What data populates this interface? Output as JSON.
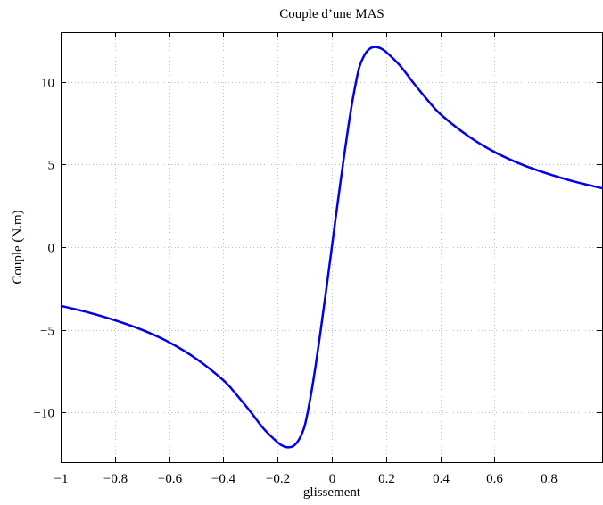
{
  "chart_data": {
    "type": "line",
    "title": "Couple d’une MAS",
    "xlabel": "glissement",
    "ylabel": "Couple (N.m)",
    "xlim": [
      -1,
      1
    ],
    "ylim": [
      -13,
      13
    ],
    "grid": true,
    "x_ticks": [
      -1,
      -0.8,
      -0.6,
      -0.4,
      -0.2,
      0,
      0.2,
      0.4,
      0.6,
      0.8
    ],
    "x_tick_labels": [
      "−1",
      "−0.8",
      "−0.6",
      "−0.4",
      "−0.2",
      "0",
      "0.2",
      "0.4",
      "0.6",
      "0.8"
    ],
    "y_ticks": [
      -10,
      -5,
      0,
      5,
      10
    ],
    "y_tick_labels": [
      "−10",
      "−5",
      "0",
      "5",
      "10"
    ],
    "colors": {
      "series": "#0000ee"
    },
    "series": [
      {
        "x": [
          -1,
          -0.9,
          -0.8,
          -0.7,
          -0.6,
          -0.5,
          -0.4,
          -0.35,
          -0.3,
          -0.25,
          -0.2,
          -0.18,
          -0.16,
          -0.14,
          -0.12,
          -0.1,
          -0.08,
          -0.06,
          -0.04,
          -0.02,
          0,
          0.02,
          0.04,
          0.06,
          0.08,
          0.1,
          0.12,
          0.14,
          0.16,
          0.18,
          0.2,
          0.25,
          0.3,
          0.35,
          0.4,
          0.5,
          0.6,
          0.7,
          0.8,
          0.9,
          1
        ],
        "values": [
          -3.55,
          -3.94,
          -4.42,
          -5.0,
          -5.75,
          -6.75,
          -8.05,
          -8.95,
          -9.95,
          -11.0,
          -11.8,
          -12.02,
          -12.1,
          -12.0,
          -11.6,
          -10.8,
          -9.2,
          -7.2,
          -4.9,
          -2.5,
          0,
          2.5,
          4.9,
          7.2,
          9.2,
          10.8,
          11.6,
          12.0,
          12.1,
          12.02,
          11.8,
          11.0,
          9.95,
          8.95,
          8.05,
          6.75,
          5.75,
          5.0,
          4.42,
          3.94,
          3.55
        ]
      }
    ]
  }
}
